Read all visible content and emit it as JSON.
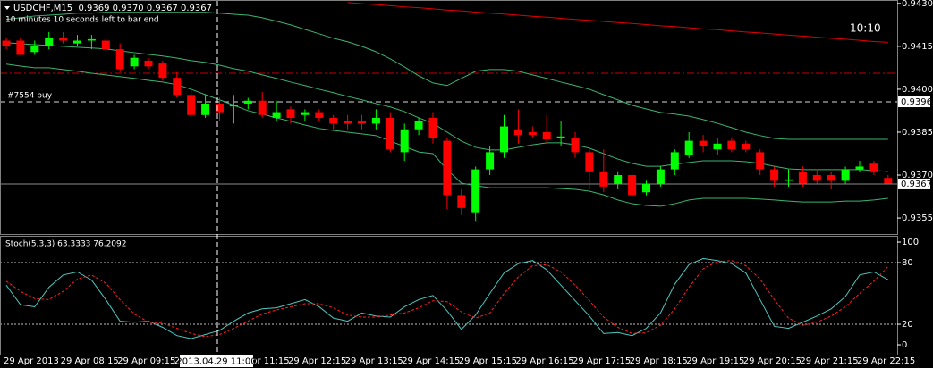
{
  "header": {
    "symbol_line": "USDCHF,M15  0.9369 0.9370 0.9367 0.9367",
    "timer": "10 minutes 10 seconds left to bar end",
    "clock": "10:10",
    "crosshair_label": "2013.04.29 11:00"
  },
  "chart_data": [
    {
      "type": "candlestick",
      "order_label": "#7554 buy",
      "categories": [
        "29 Apr 2013",
        null,
        null,
        null,
        "29 Apr 08:15",
        null,
        null,
        null,
        "29 Apr 09:15",
        null,
        null,
        null,
        "29 Apr 10:15",
        null,
        null,
        null,
        "29 Apr 11:15",
        null,
        null,
        null,
        "29 Apr 12:15",
        null,
        null,
        null,
        "29 Apr 13:15",
        null,
        null,
        null,
        "29 Apr 14:15",
        null,
        null,
        null,
        "29 Apr 15:15",
        null,
        null,
        null,
        "29 Apr 16:15",
        null,
        null,
        null,
        "29 Apr 17:15",
        null,
        null,
        null,
        "29 Apr 18:15",
        null,
        null,
        null,
        "29 Apr 19:15",
        null,
        null,
        null,
        "29 Apr 20:15",
        null,
        null,
        null,
        "29 Apr 21:15",
        null,
        null,
        null,
        "29 Apr 22:15",
        null,
        null
      ],
      "open": [
        0.9417,
        0.9417,
        0.9413,
        0.9415,
        0.9418,
        0.9416,
        0.9417,
        0.9417,
        0.9414,
        0.9408,
        0.941,
        0.9409,
        0.9404,
        0.9398,
        0.9391,
        0.9395,
        0.9394,
        0.9395,
        0.9396,
        0.939,
        0.9393,
        0.9391,
        0.9392,
        0.939,
        0.9389,
        0.9389,
        0.9388,
        0.939,
        0.9378,
        0.9386,
        0.939,
        0.9382,
        0.9363,
        0.9357,
        0.9372,
        0.9378,
        0.9386,
        0.9385,
        0.9385,
        0.9383,
        0.9383,
        0.9378,
        0.9371,
        0.9367,
        0.937,
        0.9364,
        0.9367,
        0.9372,
        0.9377,
        0.9382,
        0.9379,
        0.9382,
        0.9381,
        0.9378,
        0.9372,
        0.9368,
        0.9371,
        0.937,
        0.937,
        0.9368,
        0.9372,
        0.9374,
        0.9369
      ],
      "high": [
        0.9418,
        0.9418,
        0.9417,
        0.942,
        0.942,
        0.9419,
        0.9419,
        0.9418,
        0.9416,
        0.9412,
        0.9411,
        0.941,
        0.9406,
        0.94,
        0.9398,
        0.9397,
        0.9398,
        0.9397,
        0.9399,
        0.9396,
        0.9394,
        0.9393,
        0.9393,
        0.9391,
        0.9391,
        0.9391,
        0.9393,
        0.9392,
        0.9388,
        0.939,
        0.9392,
        0.9383,
        0.9365,
        0.9373,
        0.938,
        0.9391,
        0.9393,
        0.9387,
        0.9391,
        0.9389,
        0.9385,
        0.9379,
        0.9379,
        0.9371,
        0.9371,
        0.9368,
        0.9373,
        0.9379,
        0.9385,
        0.9384,
        0.9383,
        0.9383,
        0.9382,
        0.9379,
        0.9373,
        0.9372,
        0.9373,
        0.9372,
        0.9371,
        0.9373,
        0.9375,
        0.9375,
        0.937
      ],
      "low": [
        0.9414,
        0.9412,
        0.9412,
        0.9414,
        0.9416,
        0.9415,
        0.9414,
        0.9413,
        0.9406,
        0.9407,
        0.9407,
        0.9403,
        0.9397,
        0.939,
        0.939,
        0.9389,
        0.9388,
        0.9393,
        0.939,
        0.9389,
        0.9388,
        0.9389,
        0.9389,
        0.9386,
        0.9386,
        0.9386,
        0.9386,
        0.9378,
        0.9375,
        0.9384,
        0.9381,
        0.9358,
        0.9356,
        0.9354,
        0.937,
        0.9376,
        0.9381,
        0.9383,
        0.9381,
        0.938,
        0.9376,
        0.9365,
        0.9364,
        0.9365,
        0.9362,
        0.9363,
        0.9366,
        0.937,
        0.9376,
        0.9378,
        0.9377,
        0.9378,
        0.9378,
        0.937,
        0.9366,
        0.9366,
        0.9366,
        0.9367,
        0.9365,
        0.9367,
        0.9371,
        0.937,
        0.9367
      ],
      "close": [
        0.9415,
        0.9412,
        0.9415,
        0.9418,
        0.9417,
        0.9417,
        0.94175,
        0.9414,
        0.9407,
        0.9411,
        0.9408,
        0.9404,
        0.9398,
        0.9391,
        0.9395,
        0.9392,
        0.93945,
        0.9396,
        0.9391,
        0.9392,
        0.939,
        0.9392,
        0.939,
        0.9388,
        0.9388,
        0.9388,
        0.939,
        0.9379,
        0.9386,
        0.9389,
        0.9383,
        0.9363,
        0.93585,
        0.9372,
        0.9378,
        0.9387,
        0.9384,
        0.9384,
        0.93825,
        0.93835,
        0.9378,
        0.9371,
        0.9366,
        0.937,
        0.9363,
        0.9367,
        0.9372,
        0.9378,
        0.9382,
        0.938,
        0.9381,
        0.9379,
        0.9379,
        0.9372,
        0.9368,
        0.93685,
        0.9367,
        0.9368,
        0.9368,
        0.9372,
        0.9373,
        0.9371,
        0.9367
      ],
      "up_color": "#00ff00",
      "down_color": "#ff0000",
      "series": [
        {
          "color": "#3cb371",
          "values": [
            0.94244,
            0.9425,
            0.94256,
            0.94259,
            0.94262,
            0.94266,
            0.94266,
            0.94269,
            0.94269,
            0.94269,
            0.94269,
            0.94269,
            0.94269,
            0.94269,
            0.94269,
            0.94266,
            0.94262,
            0.94259,
            0.9425,
            0.94238,
            0.94225,
            0.94209,
            0.94194,
            0.94178,
            0.94166,
            0.9415,
            0.94131,
            0.94106,
            0.94078,
            0.94047,
            0.94022,
            0.94013,
            0.94038,
            0.94063,
            0.94069,
            0.94069,
            0.94063,
            0.9405,
            0.94038,
            0.94025,
            0.94013,
            0.94,
            0.93981,
            0.93963,
            0.93944,
            0.93931,
            0.93919,
            0.93913,
            0.93906,
            0.93894,
            0.93881,
            0.93866,
            0.9385,
            0.93838,
            0.93828,
            0.93825,
            0.93825,
            0.93825,
            0.93825,
            0.93825,
            0.93825,
            0.93825,
            0.93825
          ]
        },
        {
          "color": "#3cb371",
          "values": [
            0.94163,
            0.94159,
            0.94156,
            0.94153,
            0.9415,
            0.94147,
            0.94144,
            0.94141,
            0.94134,
            0.94128,
            0.94122,
            0.94116,
            0.94109,
            0.941,
            0.94094,
            0.94084,
            0.94072,
            0.94063,
            0.9405,
            0.94038,
            0.94025,
            0.94013,
            0.94,
            0.93988,
            0.93975,
            0.93963,
            0.9395,
            0.93938,
            0.93922,
            0.939,
            0.93881,
            0.9385,
            0.93819,
            0.93797,
            0.93788,
            0.93788,
            0.93797,
            0.93806,
            0.93813,
            0.93813,
            0.93806,
            0.93794,
            0.93775,
            0.93756,
            0.93741,
            0.93731,
            0.93731,
            0.93738,
            0.93744,
            0.9375,
            0.9375,
            0.9375,
            0.93747,
            0.93741,
            0.93731,
            0.93722,
            0.93719,
            0.93719,
            0.93719,
            0.93719,
            0.93719,
            0.93716,
            0.93713
          ]
        },
        {
          "color": "#3cb371",
          "values": [
            0.94088,
            0.94081,
            0.94075,
            0.94075,
            0.94069,
            0.94063,
            0.94056,
            0.9405,
            0.94044,
            0.94038,
            0.94031,
            0.94025,
            0.94016,
            0.94,
            0.93981,
            0.93963,
            0.93944,
            0.93925,
            0.93913,
            0.939,
            0.93888,
            0.93875,
            0.93863,
            0.93856,
            0.9385,
            0.93844,
            0.93838,
            0.93819,
            0.938,
            0.93781,
            0.93775,
            0.93719,
            0.93672,
            0.93663,
            0.93656,
            0.93656,
            0.93656,
            0.93656,
            0.93656,
            0.93653,
            0.9365,
            0.93644,
            0.93631,
            0.93613,
            0.936,
            0.93594,
            0.93591,
            0.936,
            0.93613,
            0.93619,
            0.93619,
            0.93619,
            0.93619,
            0.93616,
            0.93613,
            0.93609,
            0.93606,
            0.93606,
            0.93606,
            0.93609,
            0.93609,
            0.93613,
            0.93619
          ]
        },
        {
          "color": "#e00000",
          "values": [
            null,
            null,
            null,
            null,
            null,
            null,
            null,
            null,
            null,
            null,
            null,
            null,
            null,
            null,
            null,
            null,
            null,
            null,
            null,
            null,
            null,
            null,
            null,
            null,
            0.94303,
            0.94299,
            0.94296,
            0.94292,
            0.94288,
            0.94285,
            0.94281,
            0.94277,
            0.94274,
            0.9427,
            0.94266,
            0.94263,
            0.94259,
            0.94255,
            0.94252,
            0.94248,
            0.94244,
            0.94241,
            0.94237,
            0.94233,
            0.9423,
            0.94226,
            0.94222,
            0.94219,
            0.94215,
            0.94211,
            0.94208,
            0.94204,
            0.942,
            0.94197,
            0.94193,
            0.94189,
            0.94186,
            0.94182,
            0.94178,
            0.94175,
            0.94171,
            0.94167,
            0.94164
          ]
        }
      ],
      "levels": [
        {
          "value": 0.94056,
          "color": "#cc0000",
          "style": "dashdot"
        },
        {
          "value": 0.93956,
          "label": "0.9396",
          "color": "#d8d8d8",
          "style": "dash"
        },
        {
          "value": 0.93669,
          "label": "0.9367",
          "color": "#8a8a8a",
          "style": "solid"
        }
      ],
      "ylim": [
        0.93494,
        0.94312
      ],
      "yticks": [
        {
          "value": 0.943,
          "label": "0.9430"
        },
        {
          "value": 0.9415,
          "label": "0.9415"
        },
        {
          "value": 0.94,
          "label": "0.9400"
        },
        {
          "value": 0.9385,
          "label": "0.9385"
        },
        {
          "value": 0.937,
          "label": "0.9370"
        },
        {
          "value": 0.9355,
          "label": "0.9355"
        }
      ]
    },
    {
      "type": "line",
      "title": "Stoch(5,3,3) 63.3333 76.2092",
      "series": [
        {
          "color": "#4fc8c0",
          "values": [
            58,
            39,
            37,
            56,
            68,
            71,
            63,
            44,
            23,
            22,
            23,
            17,
            9,
            6,
            10,
            14,
            23,
            31,
            35,
            36,
            40,
            44,
            37,
            26,
            23,
            31,
            28,
            27,
            37,
            44,
            48,
            33,
            15,
            29,
            50,
            70,
            79,
            82,
            73,
            58,
            43,
            28,
            11,
            12,
            9,
            16,
            31,
            59,
            78,
            84,
            82,
            79,
            70,
            44,
            18,
            16,
            22,
            28,
            35,
            47,
            68,
            71,
            63.3333
          ]
        },
        {
          "color": "#ff2020",
          "dash": true,
          "values": [
            62,
            52,
            45,
            44,
            52,
            64,
            68,
            60,
            44,
            30,
            22,
            21,
            16,
            11,
            8,
            10,
            16,
            23,
            30,
            34,
            37,
            40,
            40,
            36,
            29,
            27,
            27,
            29,
            31,
            36,
            43,
            42,
            32,
            26,
            31,
            50,
            66,
            77,
            78,
            71,
            58,
            43,
            27,
            17,
            11,
            12,
            19,
            35,
            56,
            74,
            81,
            82,
            77,
            64,
            44,
            26,
            19,
            22,
            28,
            37,
            50,
            62,
            76.2092
          ]
        }
      ],
      "levels": [
        80,
        20
      ],
      "ylim": [
        -10.4,
        106.1
      ],
      "yticks": [
        100,
        80,
        20,
        0
      ]
    }
  ]
}
